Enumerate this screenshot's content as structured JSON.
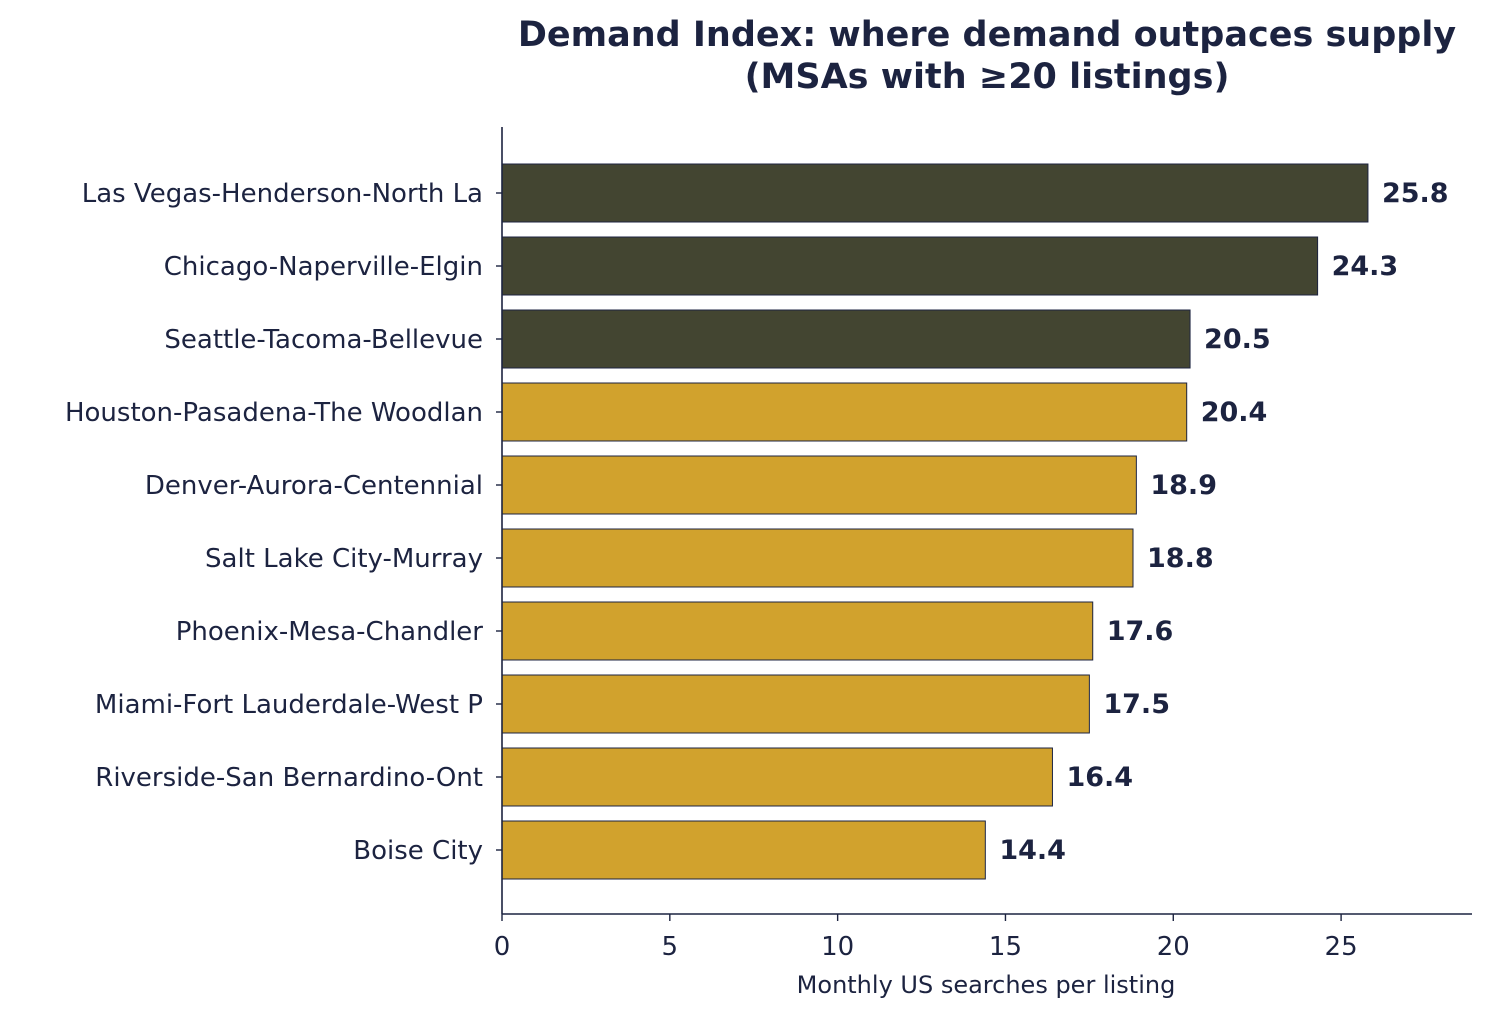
{
  "chart_data": {
    "type": "bar",
    "orientation": "horizontal",
    "title": "Demand Index: where demand outpaces supply",
    "subtitle": "(MSAs with ≥20 listings)",
    "xlabel": "Monthly US searches per listing",
    "ylabel": "",
    "xlim": [
      0,
      28.9
    ],
    "xticks": [
      0,
      5,
      10,
      15,
      20,
      25
    ],
    "grid": false,
    "categories": [
      "Las Vegas-Henderson-North La",
      "Chicago-Naperville-Elgin",
      "Seattle-Tacoma-Bellevue",
      "Houston-Pasadena-The Woodlan",
      "Denver-Aurora-Centennial",
      "Salt Lake City-Murray",
      "Phoenix-Mesa-Chandler",
      "Miami-Fort Lauderdale-West P",
      "Riverside-San Bernardino-Ont",
      "Boise City"
    ],
    "values": [
      25.8,
      24.3,
      20.5,
      20.4,
      18.9,
      18.8,
      17.6,
      17.5,
      16.4,
      14.4
    ],
    "value_labels": [
      "25.8",
      "24.3",
      "20.5",
      "20.4",
      "18.9",
      "18.8",
      "17.6",
      "17.5",
      "16.4",
      "14.4"
    ],
    "highlight_top_n": 3,
    "colors": {
      "highlight": "#434531",
      "default": "#d1a22d",
      "text": "#1c2340",
      "axis": "#1c2340"
    }
  }
}
